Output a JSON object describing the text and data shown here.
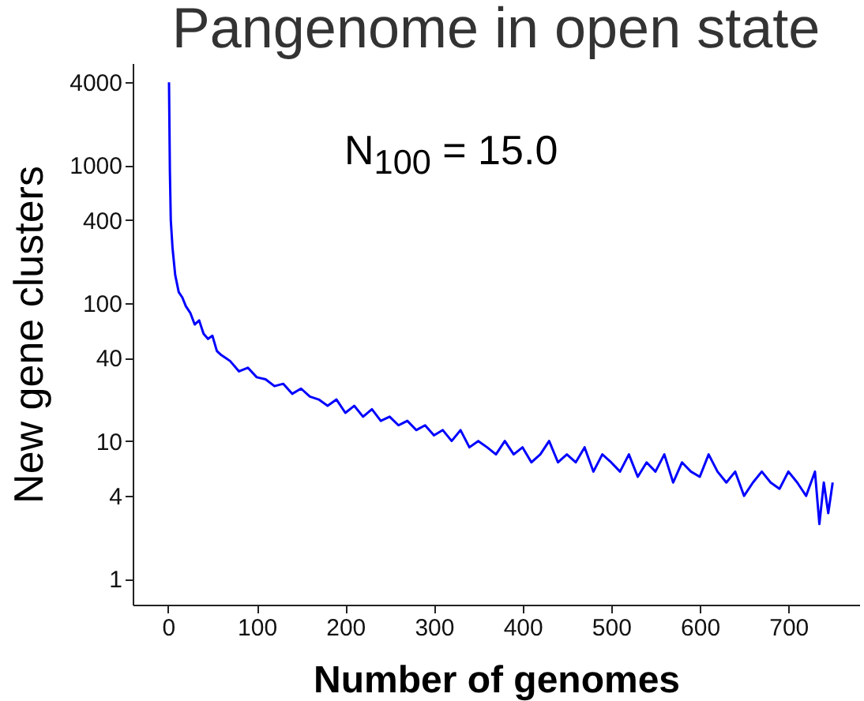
{
  "chart_data": {
    "type": "line",
    "title": "Pangenome in open state",
    "xlabel": "Number of genomes",
    "ylabel": "New gene clusters",
    "annotations": [
      "N$_{100}$ = 15.0"
    ],
    "log": "y",
    "grid": false,
    "xlim": [
      -40,
      780
    ],
    "ylim": [
      0.65,
      5500
    ],
    "xticks": [
      0,
      100,
      200,
      300,
      400,
      500,
      600,
      700
    ],
    "yticks": [
      1,
      4,
      10,
      40,
      100,
      400,
      1000,
      4000
    ],
    "series": [
      {
        "color": "#0000ff",
        "x": [
          1,
          2,
          3,
          5,
          8,
          12,
          16,
          20,
          25,
          30,
          35,
          40,
          45,
          50,
          55,
          60,
          65,
          70,
          80,
          90,
          100,
          110,
          120,
          130,
          140,
          150,
          160,
          170,
          180,
          190,
          200,
          210,
          220,
          230,
          240,
          250,
          260,
          270,
          280,
          290,
          300,
          310,
          320,
          330,
          340,
          350,
          360,
          370,
          380,
          390,
          400,
          410,
          420,
          430,
          440,
          450,
          460,
          470,
          480,
          490,
          500,
          510,
          520,
          530,
          540,
          550,
          560,
          570,
          580,
          590,
          600,
          610,
          620,
          630,
          640,
          650,
          660,
          670,
          680,
          690,
          700,
          710,
          720,
          730,
          735,
          740,
          745,
          750
        ],
        "values": [
          4000,
          900,
          400,
          250,
          160,
          120,
          110,
          95,
          85,
          70,
          75,
          60,
          55,
          58,
          45,
          42,
          40,
          38,
          32,
          34,
          29,
          28,
          25,
          26,
          22,
          24,
          21,
          20,
          18,
          20,
          16,
          18,
          15,
          17,
          14,
          15,
          13,
          14,
          12,
          13,
          11,
          12,
          10,
          12,
          9,
          10,
          9,
          8,
          10,
          8,
          9,
          7,
          8,
          10,
          7,
          8,
          7,
          9,
          6,
          8,
          7,
          6,
          8,
          5.5,
          7,
          6,
          8,
          5,
          7,
          6,
          5.5,
          8,
          6,
          5,
          6,
          4,
          5,
          6,
          5,
          4.5,
          6,
          5,
          4,
          6,
          2.5,
          5,
          3,
          5
        ]
      }
    ]
  }
}
